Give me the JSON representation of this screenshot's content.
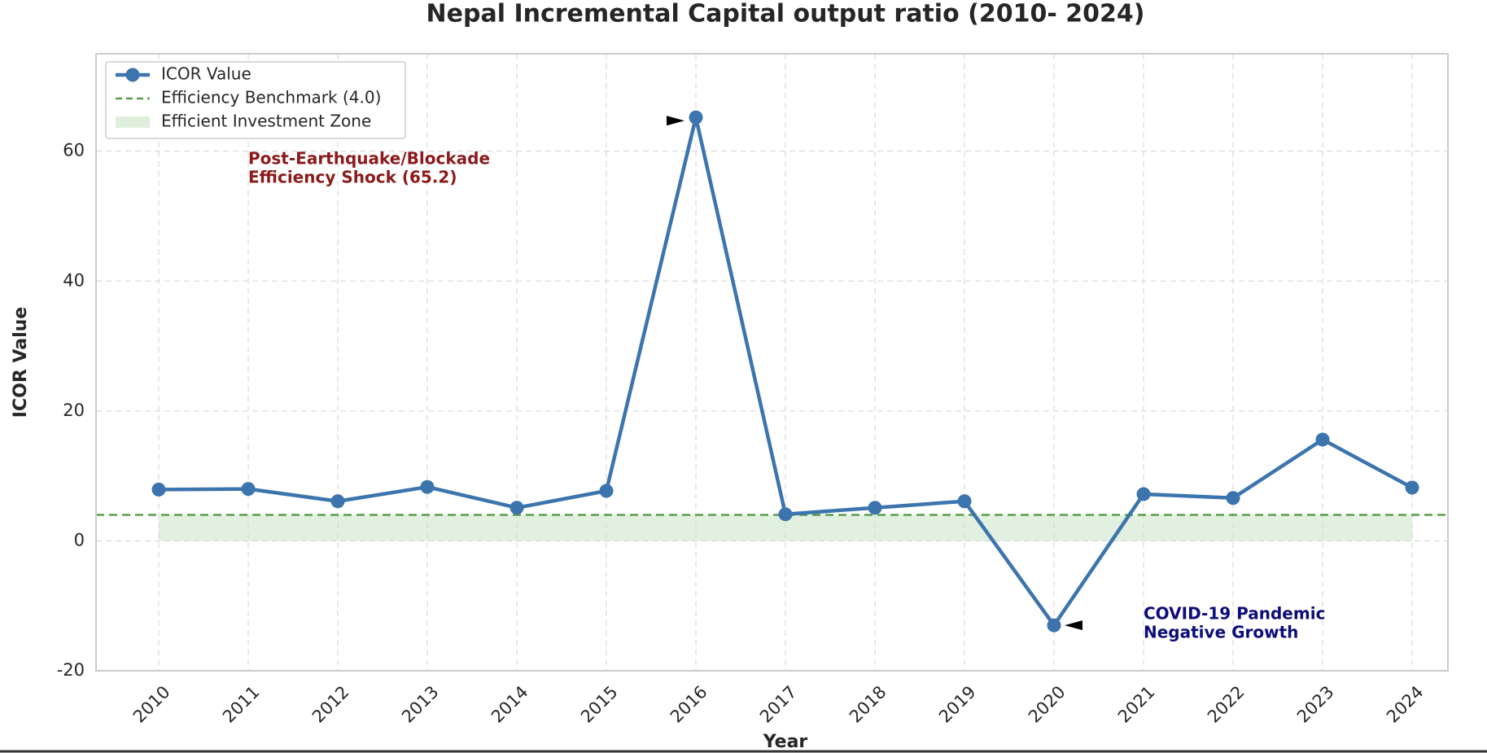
{
  "chart_data": {
    "type": "line",
    "title": "Nepal Incremental Capital output ratio (2010- 2024)",
    "x_label": "Year",
    "y_label": "ICOR Value",
    "x": [
      2010,
      2011,
      2012,
      2013,
      2014,
      2015,
      2016,
      2017,
      2018,
      2019,
      2020,
      2021,
      2022,
      2023,
      2024
    ],
    "series": [
      {
        "name": "ICOR Value",
        "color": "#3c74ad",
        "values": [
          7.9,
          8.0,
          6.1,
          8.3,
          5.1,
          7.7,
          65.2,
          4.1,
          5.1,
          6.1,
          -13.0,
          7.2,
          6.6,
          15.6,
          8.2
        ]
      }
    ],
    "benchmark": {
      "name": "Efficiency Benchmark (4.0)",
      "value": 4.0,
      "color": "#5a9e4b"
    },
    "zone": {
      "name": "Efficient Investment Zone",
      "range": [
        0,
        4.0
      ],
      "color": "#c9e4c5"
    },
    "annotations": [
      {
        "lines": [
          "Post-Earthquake/Blockade",
          "Efficiency Shock (65.2)"
        ],
        "color": "#8b1a1a"
      },
      {
        "lines": [
          "COVID-19 Pandemic",
          "Negative Growth"
        ],
        "color": "#0d0d7a"
      }
    ],
    "xlim": [
      2009.3,
      2024.4
    ],
    "ylim": [
      -20,
      75
    ],
    "xticks": [
      2010,
      2011,
      2012,
      2013,
      2014,
      2015,
      2016,
      2017,
      2018,
      2019,
      2020,
      2021,
      2022,
      2023,
      2024
    ],
    "yticks": [
      -20,
      0,
      20,
      40,
      60
    ],
    "grid": true,
    "legend": "upper left"
  }
}
